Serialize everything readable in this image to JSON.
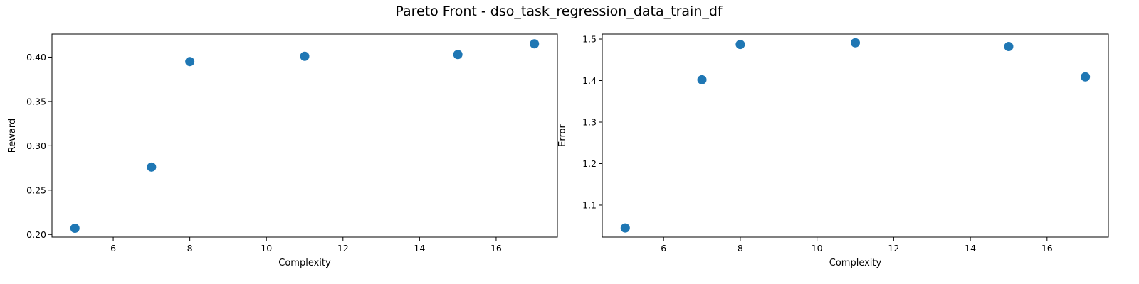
{
  "figure_title": "Pareto Front - dso_task_regression_data_train_df",
  "colors": {
    "marker": "#1f77b4",
    "axes": "#000000",
    "background": "#ffffff"
  },
  "chart_data": [
    {
      "type": "scatter",
      "title": "",
      "xlabel": "Complexity",
      "ylabel": "Reward",
      "xlim": [
        4.4,
        17.6
      ],
      "ylim": [
        0.197,
        0.426
      ],
      "xticks": [
        6,
        8,
        10,
        12,
        14,
        16
      ],
      "yticks": [
        0.2,
        0.25,
        0.3,
        0.35,
        0.4
      ],
      "ytick_labels": [
        "0.20",
        "0.25",
        "0.30",
        "0.35",
        "0.40"
      ],
      "grid": false,
      "legend": false,
      "x": [
        5,
        7,
        8,
        11,
        15,
        17
      ],
      "y": [
        0.207,
        0.276,
        0.395,
        0.401,
        0.403,
        0.415
      ]
    },
    {
      "type": "scatter",
      "title": "",
      "xlabel": "Complexity",
      "ylabel": "Error",
      "xlim": [
        4.4,
        17.6
      ],
      "ylim": [
        1.023,
        1.512
      ],
      "xticks": [
        6,
        8,
        10,
        12,
        14,
        16
      ],
      "yticks": [
        1.1,
        1.2,
        1.3,
        1.4,
        1.5
      ],
      "ytick_labels": [
        "1.1",
        "1.2",
        "1.3",
        "1.4",
        "1.5"
      ],
      "grid": false,
      "legend": false,
      "x": [
        5,
        7,
        8,
        11,
        15,
        17
      ],
      "y": [
        1.045,
        1.402,
        1.487,
        1.491,
        1.482,
        1.409
      ]
    }
  ]
}
